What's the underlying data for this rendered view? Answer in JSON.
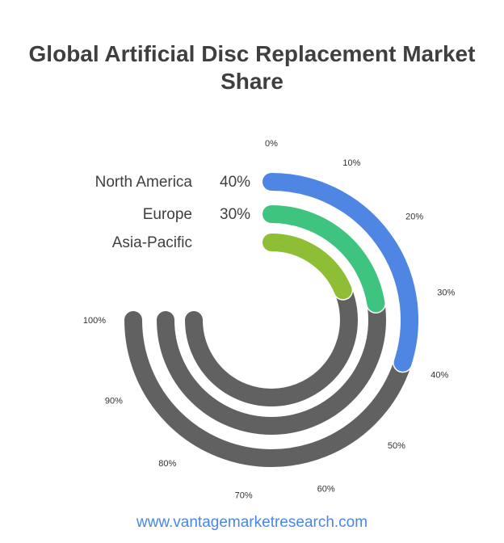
{
  "title": "Global Artificial Disc Replacement Market Share",
  "footer": {
    "website": "www.vantagemarketresearch.com"
  },
  "chart_data": {
    "type": "radial-bar",
    "categories": [
      "North America",
      "Europe",
      "Asia-Pacific"
    ],
    "values": [
      40,
      30,
      25
    ],
    "value_labels": [
      "40%",
      "30%",
      ""
    ],
    "max": 100,
    "tick_labels": [
      "0%",
      "10%",
      "20%",
      "30%",
      "40%",
      "50%",
      "60%",
      "70%",
      "80%",
      "90%",
      "100%"
    ],
    "colors": {
      "North America": "#4f86e4",
      "Europe": "#3ec47f",
      "Asia-Pacific": "#8ebd36",
      "track": "#616161",
      "label": "#3f3f3f",
      "tick": "#333333"
    }
  }
}
